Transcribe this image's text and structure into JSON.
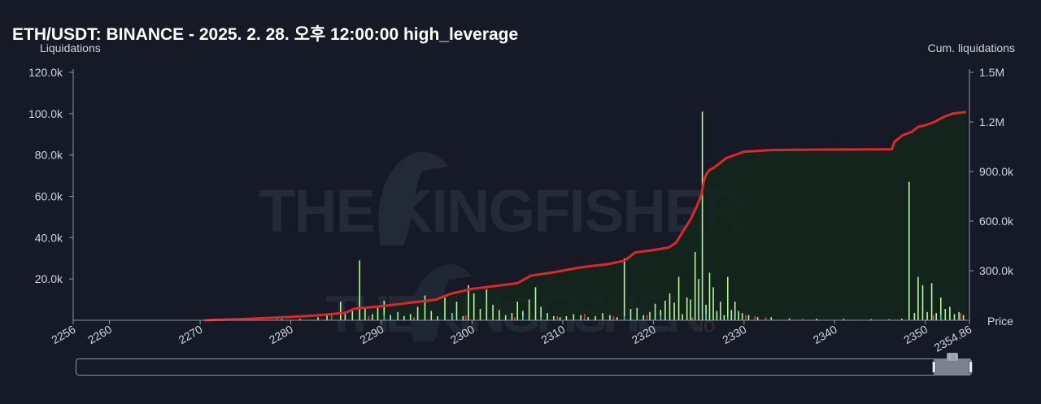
{
  "page": {
    "title": "ETH/USDT: BINANCE - 2025. 2. 28. 오후 12:00:00 high_leverage",
    "left_axis_title": "Liquidations",
    "right_axis_title": "Cum. liquidations",
    "x_axis_title": "Price",
    "watermark_text": "THE KINGFISHER",
    "watermark_suffix": ".io"
  },
  "colors": {
    "background": "#161a27",
    "long_bar": "#b5f59a",
    "short_bar": "#e0413f",
    "teal_bar": "#3ec7c7",
    "cumulative_line": "#e0262a",
    "cumulative_fill": "#13261d",
    "axis": "#8d93a3"
  },
  "chart_data": {
    "type": "bar",
    "title": "ETH/USDT: BINANCE - 2025. 2. 28. 오후 12:00:00 high_leverage",
    "xlabel": "Price",
    "ylabel": "Liquidations",
    "y2label": "Cum. liquidations",
    "xlim": [
      2256,
      2354.86
    ],
    "ylim": [
      0,
      120000
    ],
    "y2lim": [
      0,
      1500000
    ],
    "x_ticks": [
      "2256",
      "2260",
      "2270",
      "2280",
      "2290",
      "2300",
      "2310",
      "2320",
      "2330",
      "2340",
      "2350",
      "2354.86"
    ],
    "y_ticks": [
      "20.0k",
      "40.0k",
      "60.0k",
      "80.0k",
      "100.0k",
      "120.0k"
    ],
    "y2_ticks": [
      "300.0k",
      "600.0k",
      "900.0k",
      "1.2M",
      "1.5M"
    ],
    "legend": "none",
    "grid": false,
    "series": [
      {
        "name": "",
        "kind": "bar",
        "color": "#b5f59a",
        "x": [
          2270.5,
          2272,
          2275,
          2279,
          2281,
          2283,
          2284,
          2285.5,
          2286,
          2286.8,
          2287.6,
          2288.2,
          2289,
          2289.6,
          2290.3,
          2291,
          2291.8,
          2292.5,
          2293.2,
          2294,
          2294.8,
          2295.5,
          2296.2,
          2297,
          2297.8,
          2298.3,
          2299,
          2299.6,
          2300.2,
          2300.9,
          2301.6,
          2302.3,
          2303,
          2303.7,
          2304.4,
          2305,
          2305.6,
          2306.3,
          2307,
          2307.6,
          2308.3,
          2309,
          2309.7,
          2310.4,
          2311.2,
          2312,
          2312.8,
          2313.6,
          2314.4,
          2315.2,
          2316,
          2316.8,
          2317.5,
          2318.2,
          2318.9,
          2319.6,
          2320.2,
          2320.8,
          2321.3,
          2321.8,
          2322.3,
          2322.8,
          2323.2,
          2323.7,
          2324.1,
          2324.6,
          2325,
          2325.4,
          2325.8,
          2326.2,
          2326.6,
          2327,
          2327.4,
          2327.8,
          2328.2,
          2328.6,
          2329,
          2329.4,
          2329.8,
          2330.5,
          2331.5,
          2333,
          2335,
          2338,
          2341,
          2344,
          2346,
          2347.4,
          2348.2,
          2348.8,
          2349.2,
          2349.7,
          2350.2,
          2350.7,
          2351.2,
          2351.7,
          2352.2,
          2352.7,
          2353.2,
          2353.7,
          2354.2
        ],
        "values": [
          300,
          400,
          500,
          600,
          700,
          1500,
          2500,
          9000,
          3000,
          4500,
          29000,
          5500,
          3000,
          6000,
          9500,
          2500,
          4000,
          2000,
          3000,
          6500,
          12000,
          4500,
          2000,
          11000,
          3500,
          9000,
          2000,
          17000,
          13000,
          5500,
          15000,
          7500,
          5000,
          2500,
          3500,
          9000,
          4500,
          10000,
          16000,
          6500,
          3500,
          2000,
          1500,
          2000,
          3000,
          2500,
          1500,
          2000,
          3500,
          2500,
          1500,
          30000,
          5500,
          6000,
          2500,
          4000,
          8000,
          5000,
          9500,
          13000,
          8500,
          21000,
          3000,
          11000,
          10000,
          33000,
          20000,
          101000,
          7500,
          23000,
          16000,
          4500,
          9000,
          2500,
          21000,
          5000,
          9000,
          4500,
          3500,
          2500,
          1500,
          1500,
          1000,
          800,
          700,
          600,
          500,
          800,
          67000,
          3500,
          21000,
          17000,
          4000,
          18000,
          3500,
          11000,
          5500,
          6500,
          3000,
          4000,
          2500
        ],
        "overlay": [
          {
            "x": 2290.3,
            "value": 2500,
            "color": "#3ec7c7"
          },
          {
            "x": 2297.8,
            "value": 3500,
            "color": "#3ec7c7"
          },
          {
            "x": 2305.6,
            "value": 2000,
            "color": "#3ec7c7"
          },
          {
            "x": 2307.6,
            "value": 1500,
            "color": "#3ec7c7"
          },
          {
            "x": 2316.8,
            "value": 2000,
            "color": "#3ec7c7"
          },
          {
            "x": 2320.8,
            "value": 2500,
            "color": "#3ec7c7"
          },
          {
            "x": 2325.8,
            "value": 3000,
            "color": "#3ec7c7"
          },
          {
            "x": 2328.2,
            "value": 1500,
            "color": "#3ec7c7"
          },
          {
            "x": 2351.7,
            "value": 2500,
            "color": "#3ec7c7"
          },
          {
            "x": 2278.5,
            "value": 1500,
            "color": "#e0413f"
          },
          {
            "x": 2284.5,
            "value": 2500,
            "color": "#e0413f"
          },
          {
            "x": 2288.6,
            "value": 2000,
            "color": "#e0413f"
          },
          {
            "x": 2293.6,
            "value": 1500,
            "color": "#e0413f"
          },
          {
            "x": 2299.3,
            "value": 2500,
            "color": "#e0413f"
          },
          {
            "x": 2304.7,
            "value": 1500,
            "color": "#e0413f"
          },
          {
            "x": 2309.4,
            "value": 2000,
            "color": "#e0413f"
          },
          {
            "x": 2312.4,
            "value": 3000,
            "color": "#e0413f"
          },
          {
            "x": 2315.6,
            "value": 2000,
            "color": "#e0413f"
          },
          {
            "x": 2319.3,
            "value": 2500,
            "color": "#e0413f"
          },
          {
            "x": 2324.3,
            "value": 1500,
            "color": "#e0413f"
          },
          {
            "x": 2330.2,
            "value": 2500,
            "color": "#e0413f"
          },
          {
            "x": 2331.2,
            "value": 2000,
            "color": "#e0413f"
          },
          {
            "x": 2332.4,
            "value": 1500,
            "color": "#e0413f"
          },
          {
            "x": 2336.5,
            "value": 800,
            "color": "#e0413f"
          },
          {
            "x": 2350.9,
            "value": 2500,
            "color": "#e0413f"
          },
          {
            "x": 2353.9,
            "value": 3500,
            "color": "#e0413f"
          }
        ]
      },
      {
        "name": "",
        "kind": "line",
        "axis": "right",
        "color": "#e0262a",
        "x": [
          2270.5,
          2275,
          2280,
          2283,
          2286,
          2287,
          2290,
          2293,
          2296,
          2297.6,
          2300,
          2303,
          2305,
          2306.5,
          2309,
          2312,
          2315,
          2316.8,
          2318,
          2320,
          2321.7,
          2322.5,
          2323.3,
          2324.1,
          2324.8,
          2325.3,
          2325.6,
          2325.9,
          2326.2,
          2326.6,
          2327.2,
          2328,
          2330,
          2333,
          2336,
          2340,
          2344,
          2346.3,
          2346.6,
          2347.5,
          2348.5,
          2349.2,
          2350,
          2351,
          2352,
          2353,
          2354.5
        ],
        "values": [
          0,
          8000,
          20000,
          30000,
          45000,
          70000,
          85000,
          105000,
          125000,
          160000,
          190000,
          210000,
          225000,
          270000,
          290000,
          320000,
          340000,
          360000,
          410000,
          425000,
          440000,
          470000,
          540000,
          610000,
          690000,
          760000,
          850000,
          890000,
          910000,
          920000,
          945000,
          980000,
          1020000,
          1030000,
          1032000,
          1033000,
          1034000,
          1035000,
          1080000,
          1120000,
          1140000,
          1170000,
          1180000,
          1200000,
          1230000,
          1250000,
          1260000
        ]
      }
    ]
  }
}
